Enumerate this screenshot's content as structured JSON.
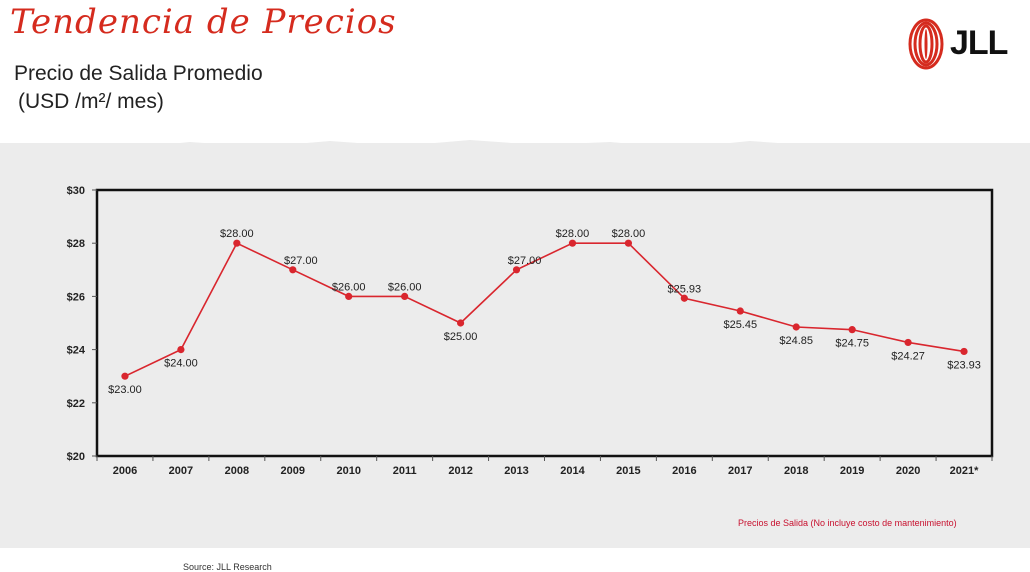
{
  "header": {
    "title": "Tendencia de Precios",
    "subtitle_line1": "Precio de Salida Promedio",
    "subtitle_line2": "(USD /m²/ mes)",
    "logo_text": "JLL"
  },
  "footnote": "Precios de Salida (No incluye costo de mantenimiento)",
  "source": "Source: JLL Research",
  "colors": {
    "accent": "#d52b1e",
    "line": "#d9262e",
    "background_texture": "#ececec"
  },
  "chart_data": {
    "type": "line",
    "categories": [
      "2006",
      "2007",
      "2008",
      "2009",
      "2010",
      "2011",
      "2012",
      "2013",
      "2014",
      "2015",
      "2016",
      "2017",
      "2018",
      "2019",
      "2020",
      "2021*"
    ],
    "series": [
      {
        "values": [
          23.0,
          24.0,
          28.0,
          27.0,
          26.0,
          26.0,
          25.0,
          27.0,
          28.0,
          28.0,
          25.93,
          25.45,
          24.85,
          24.75,
          24.27,
          23.93
        ],
        "labels": [
          "$23.00",
          "$24.00",
          "$28.00",
          "$27.00",
          "$26.00",
          "$26.00",
          "$25.00",
          "$27.00",
          "$28.00",
          "$28.00",
          "$25.93",
          "$25.45",
          "$24.85",
          "$24.75",
          "$24.27",
          "$23.93"
        ],
        "label_position": [
          "below",
          "below",
          "above",
          "above",
          "above",
          "above",
          "below",
          "above",
          "above",
          "above",
          "above",
          "below",
          "below",
          "below",
          "below",
          "below"
        ]
      }
    ],
    "ylim": [
      20,
      30
    ],
    "yticks": [
      20,
      22,
      24,
      26,
      28,
      30
    ],
    "ytick_labels": [
      "$20",
      "$22",
      "$24",
      "$26",
      "$28",
      "$30"
    ],
    "xlabel": "",
    "ylabel": "",
    "grid": false,
    "legend": "none"
  }
}
